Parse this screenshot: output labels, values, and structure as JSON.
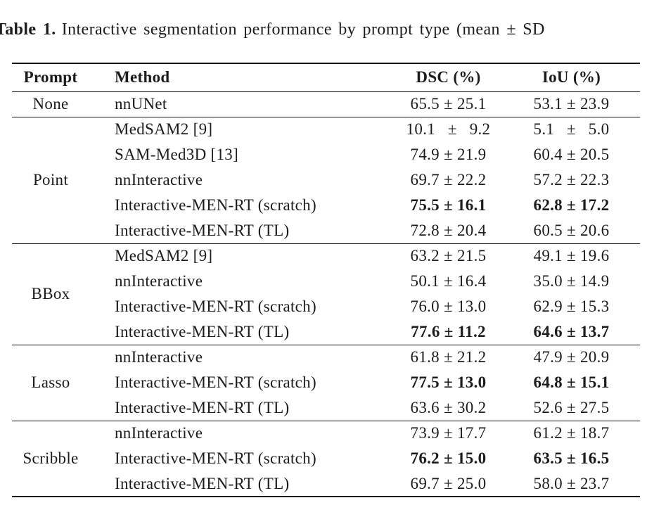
{
  "colors": {
    "text": "#1c1c1c",
    "rule": "#141414",
    "background": "#ffffff"
  },
  "caption": {
    "label": "Table 1.",
    "text": "Interactive segmentation performance by prompt type (mean ± SD"
  },
  "table": {
    "headers": [
      "Prompt",
      "Method",
      "DSC (%)",
      "IoU (%)"
    ],
    "sections": [
      {
        "prompt": "None",
        "rows": [
          {
            "method": "nnUNet",
            "dsc": "65.5 ± 25.1",
            "iou": "53.1 ± 23.9",
            "bold": false
          }
        ]
      },
      {
        "prompt": "Point",
        "rows": [
          {
            "method": "MedSAM2 [9]",
            "dsc": "10.1  ±  9.2",
            "iou": "5.1  ±  5.0",
            "bold": false
          },
          {
            "method": "SAM-Med3D [13]",
            "dsc": "74.9 ± 21.9",
            "iou": "60.4 ± 20.5",
            "bold": false
          },
          {
            "method": "nnInteractive",
            "dsc": "69.7 ± 22.2",
            "iou": "57.2 ± 22.3",
            "bold": false
          },
          {
            "method": "Interactive-MEN-RT (scratch)",
            "dsc": "75.5 ± 16.1",
            "iou": "62.8 ± 17.2",
            "bold": true
          },
          {
            "method": "Interactive-MEN-RT (TL)",
            "dsc": "72.8 ± 20.4",
            "iou": "60.5 ± 20.6",
            "bold": false
          }
        ]
      },
      {
        "prompt": "BBox",
        "rows": [
          {
            "method": "MedSAM2 [9]",
            "dsc": "63.2 ± 21.5",
            "iou": "49.1 ± 19.6",
            "bold": false
          },
          {
            "method": "nnInteractive",
            "dsc": "50.1 ± 16.4",
            "iou": "35.0 ± 14.9",
            "bold": false
          },
          {
            "method": "Interactive-MEN-RT (scratch)",
            "dsc": "76.0 ± 13.0",
            "iou": "62.9 ± 15.3",
            "bold": false
          },
          {
            "method": "Interactive-MEN-RT (TL)",
            "dsc": "77.6 ± 11.2",
            "iou": "64.6 ± 13.7",
            "bold": true
          }
        ]
      },
      {
        "prompt": "Lasso",
        "rows": [
          {
            "method": "nnInteractive",
            "dsc": "61.8 ± 21.2",
            "iou": "47.9 ± 20.9",
            "bold": false
          },
          {
            "method": "Interactive-MEN-RT (scratch)",
            "dsc": "77.5 ± 13.0",
            "iou": "64.8 ± 15.1",
            "bold": true
          },
          {
            "method": "Interactive-MEN-RT (TL)",
            "dsc": "63.6 ± 30.2",
            "iou": "52.6 ± 27.5",
            "bold": false
          }
        ]
      },
      {
        "prompt": "Scribble",
        "rows": [
          {
            "method": "nnInteractive",
            "dsc": "73.9 ± 17.7",
            "iou": "61.2 ± 18.7",
            "bold": false
          },
          {
            "method": "Interactive-MEN-RT (scratch)",
            "dsc": "76.2 ± 15.0",
            "iou": "63.5 ± 16.5",
            "bold": true
          },
          {
            "method": "Interactive-MEN-RT (TL)",
            "dsc": "69.7 ± 25.0",
            "iou": "58.0 ± 23.7",
            "bold": false
          }
        ]
      }
    ]
  }
}
